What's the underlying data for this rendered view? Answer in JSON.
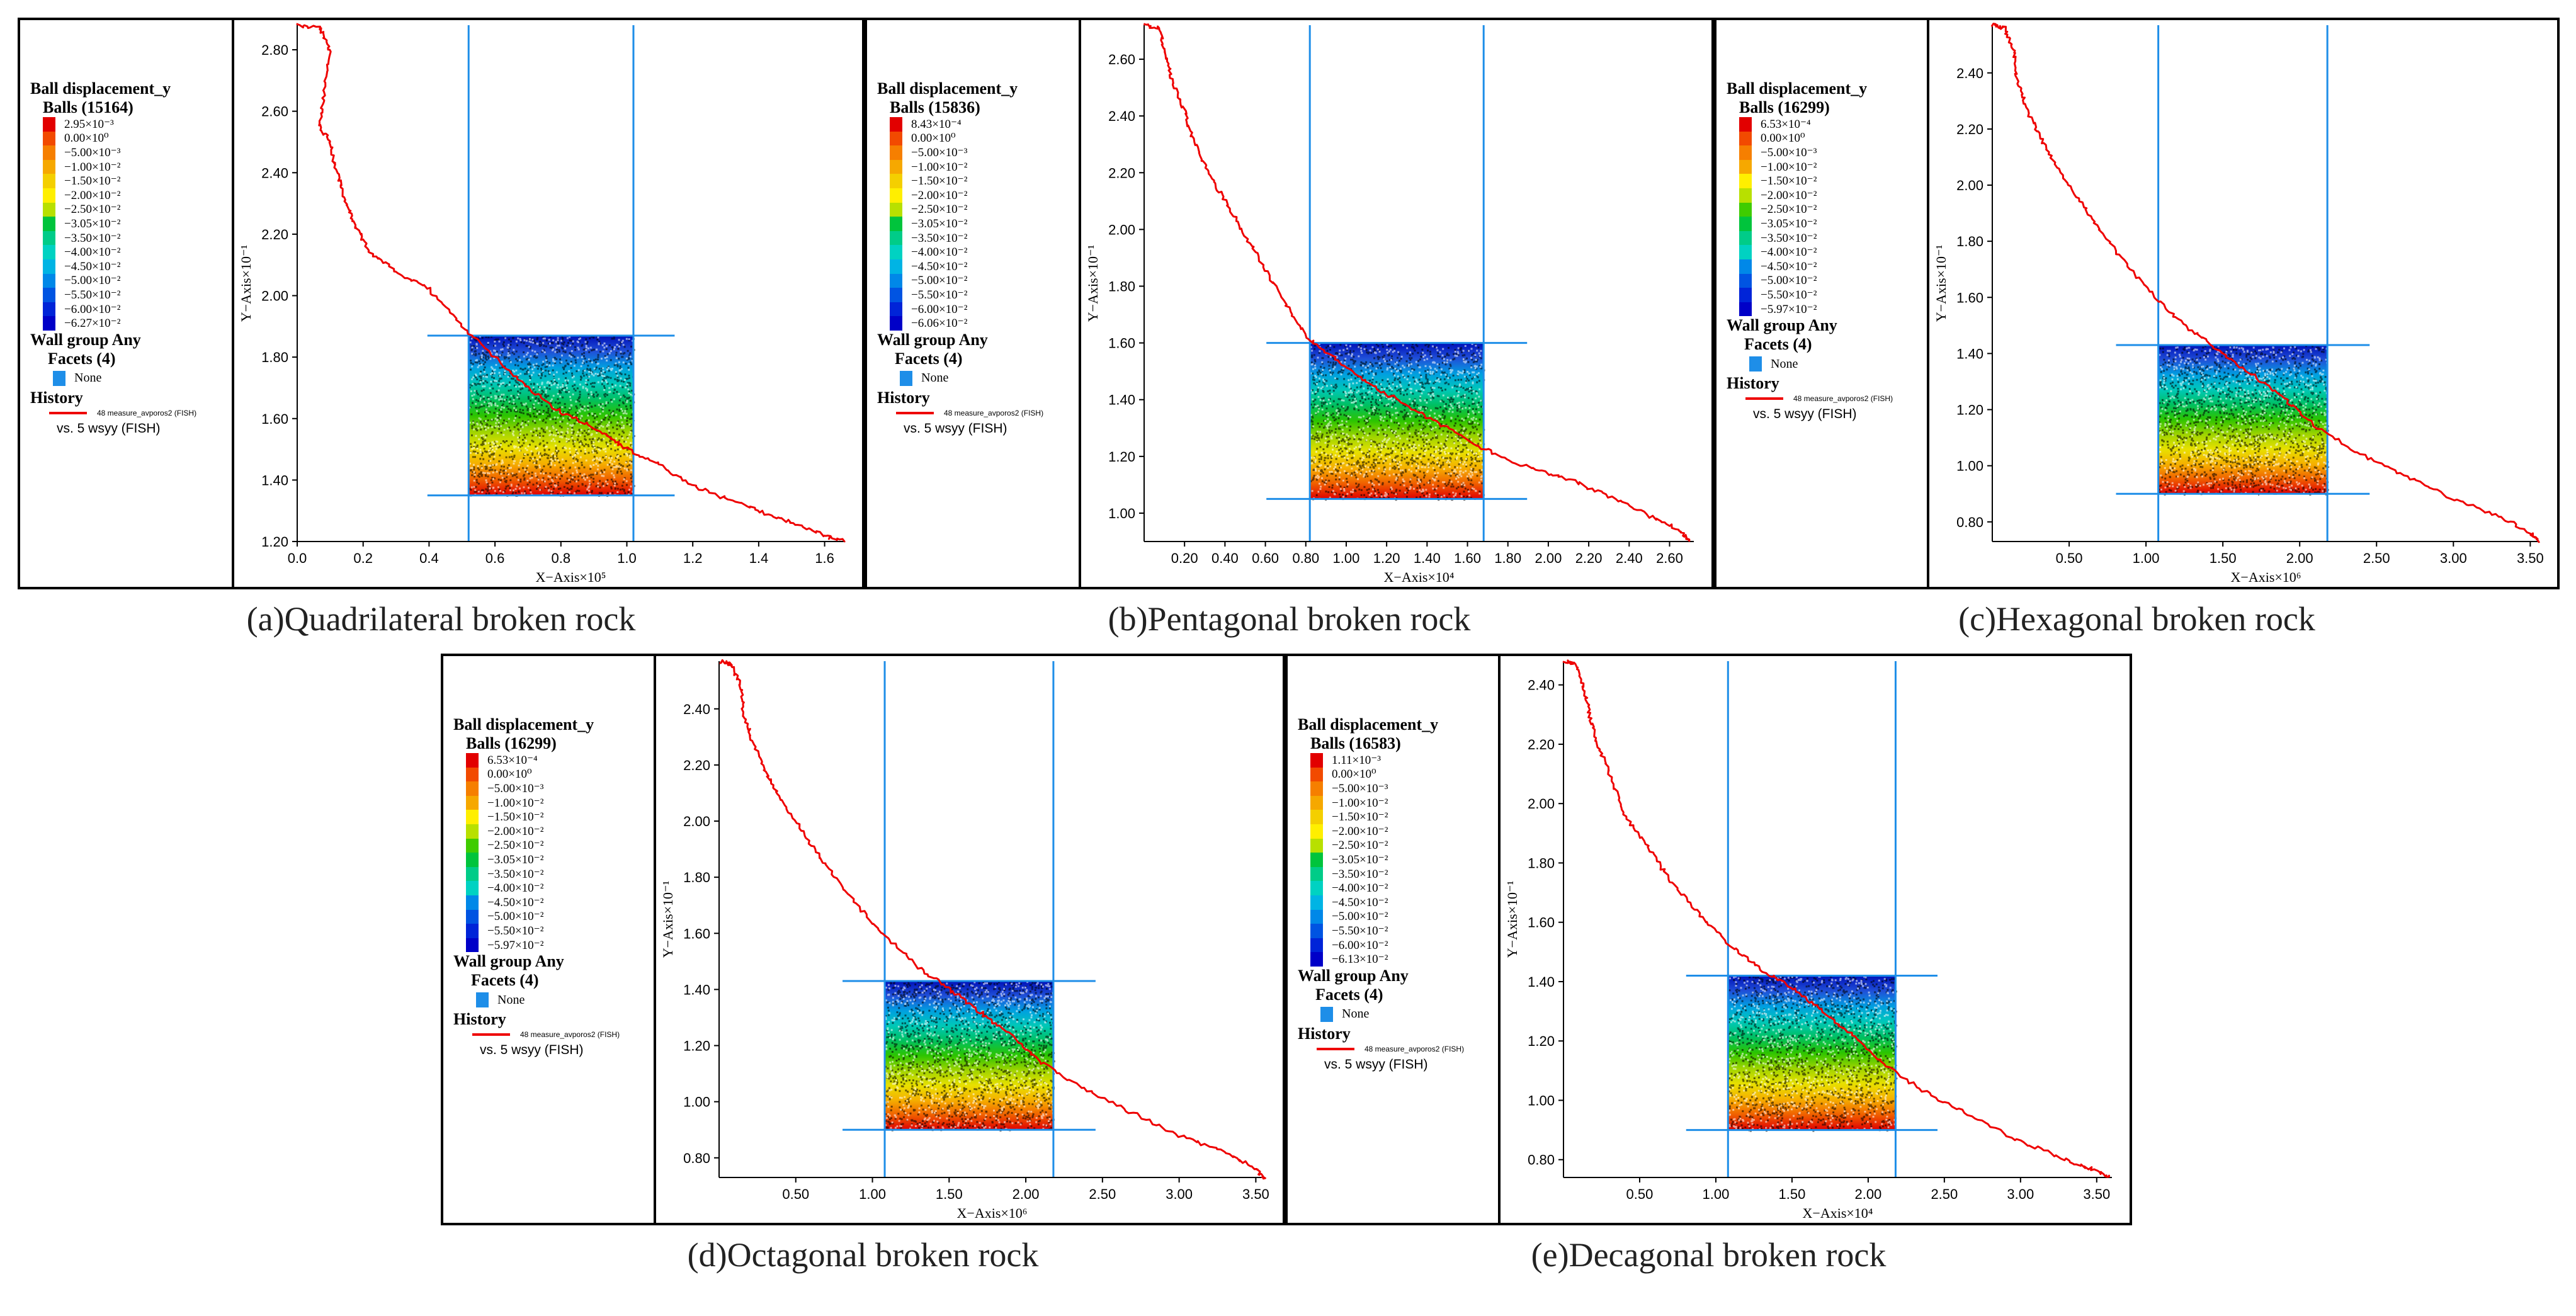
{
  "colors": {
    "history_line": "#ee0000",
    "wall_line": "#1e8ee8",
    "facet_swatch": "#1e8ee8",
    "color_scale": [
      "#e20000",
      "#f24a00",
      "#f67f00",
      "#f6a800",
      "#f4cf00",
      "#ffef00",
      "#b8e000",
      "#3fcc00",
      "#00c43c",
      "#00cc88",
      "#00d2c2",
      "#00b4e4",
      "#0088e8",
      "#0054e2",
      "#0024d8",
      "#0000c8"
    ]
  },
  "panels": [
    {
      "id": "a",
      "caption": "(a)Quadrilateral broken rock",
      "legend": {
        "title": "Ball displacement_y",
        "balls": "Balls (15164)",
        "levels": [
          "2.95×10⁻³",
          "0.00×10⁰",
          "−5.00×10⁻³",
          "−1.00×10⁻²",
          "−1.50×10⁻²",
          "−2.00×10⁻²",
          "−2.50×10⁻²",
          "−3.05×10⁻²",
          "−3.50×10⁻²",
          "−4.00×10⁻²",
          "−4.50×10⁻²",
          "−5.00×10⁻²",
          "−5.50×10⁻²",
          "−6.00×10⁻²",
          "−6.27×10⁻²"
        ],
        "wall_group": "Wall group Any",
        "facets": "Facets (4)",
        "facet_value": "None",
        "history": "History",
        "history_item": "48 measure_avporos2 (FISH)",
        "vs": "vs. 5 wsyy (FISH)"
      },
      "chart_data": {
        "type": "line",
        "xlabel": "X−Axis×10⁵",
        "ylabel": "Y−Axis×10⁻¹",
        "xlim": [
          0,
          1.66
        ],
        "ylim": [
          1.2,
          2.88
        ],
        "xticks": [
          "0.0",
          "0.2",
          "0.4",
          "0.6",
          "0.8",
          "1.0",
          "1.2",
          "1.4",
          "1.6"
        ],
        "xtick_values": [
          0.0,
          0.2,
          0.4,
          0.6,
          0.8,
          1.0,
          1.2,
          1.4,
          1.6
        ],
        "yticks": [
          "1.20",
          "1.40",
          "1.60",
          "1.80",
          "2.00",
          "2.20",
          "2.40",
          "2.60",
          "2.80"
        ],
        "ytick_values": [
          1.2,
          1.4,
          1.6,
          1.8,
          2.0,
          2.2,
          2.4,
          2.6,
          2.8
        ],
        "box": {
          "x": [
            0.52,
            1.02
          ],
          "y": [
            1.35,
            1.87
          ]
        },
        "series": [
          {
            "name": "48 measure_avporos2 (FISH)",
            "x": [
              0.0,
              0.07,
              0.1,
              0.08,
              0.07,
              0.1,
              0.12,
              0.15,
              0.18,
              0.22,
              0.3,
              0.4,
              0.5,
              0.6,
              0.7,
              0.8,
              0.92,
              1.0,
              1.1,
              1.2,
              1.3,
              1.4,
              1.5,
              1.6,
              1.66
            ],
            "y": [
              2.88,
              2.87,
              2.8,
              2.65,
              2.55,
              2.5,
              2.4,
              2.3,
              2.22,
              2.14,
              2.08,
              2.02,
              1.9,
              1.8,
              1.7,
              1.62,
              1.56,
              1.5,
              1.45,
              1.38,
              1.34,
              1.3,
              1.26,
              1.22,
              1.2
            ]
          }
        ]
      }
    },
    {
      "id": "b",
      "caption": "(b)Pentagonal broken rock",
      "legend": {
        "title": "Ball displacement_y",
        "balls": "Balls (15836)",
        "levels": [
          "8.43×10⁻⁴",
          "0.00×10⁰",
          "−5.00×10⁻³",
          "−1.00×10⁻²",
          "−1.50×10⁻²",
          "−2.00×10⁻²",
          "−2.50×10⁻²",
          "−3.05×10⁻²",
          "−3.50×10⁻²",
          "−4.00×10⁻²",
          "−4.50×10⁻²",
          "−5.00×10⁻²",
          "−5.50×10⁻²",
          "−6.00×10⁻²",
          "−6.06×10⁻²"
        ],
        "wall_group": "Wall group Any",
        "facets": "Facets (4)",
        "facet_value": "None",
        "history": "History",
        "history_item": "48 measure_avporos2 (FISH)",
        "vs": "vs. 5 wsyy (FISH)"
      },
      "chart_data": {
        "type": "line",
        "xlabel": "X−Axis×10⁴",
        "ylabel": "Y−Axis×10⁻¹",
        "xlim": [
          0,
          2.72
        ],
        "ylim": [
          0.9,
          2.72
        ],
        "xticks": [
          "0.20",
          "0.40",
          "0.60",
          "0.80",
          "1.00",
          "1.20",
          "1.40",
          "1.60",
          "1.80",
          "2.00",
          "2.20",
          "2.40",
          "2.60"
        ],
        "xtick_values": [
          0.2,
          0.4,
          0.6,
          0.8,
          1.0,
          1.2,
          1.4,
          1.6,
          1.8,
          2.0,
          2.2,
          2.4,
          2.6
        ],
        "yticks": [
          "1.00",
          "1.20",
          "1.40",
          "1.60",
          "1.80",
          "2.00",
          "2.20",
          "2.40",
          "2.60"
        ],
        "ytick_values": [
          1.0,
          1.2,
          1.4,
          1.6,
          1.8,
          2.0,
          2.2,
          2.4,
          2.6
        ],
        "box": {
          "x": [
            0.82,
            1.68
          ],
          "y": [
            1.05,
            1.6
          ]
        },
        "series": [
          {
            "name": "48 measure_avporos2 (FISH)",
            "x": [
              0.0,
              0.08,
              0.1,
              0.14,
              0.2,
              0.25,
              0.32,
              0.4,
              0.5,
              0.6,
              0.7,
              0.8,
              0.95,
              1.1,
              1.3,
              1.5,
              1.7,
              1.9,
              2.1,
              2.3,
              2.5,
              2.65,
              2.7
            ],
            "y": [
              2.72,
              2.71,
              2.62,
              2.52,
              2.42,
              2.3,
              2.2,
              2.1,
              1.98,
              1.86,
              1.74,
              1.62,
              1.54,
              1.46,
              1.38,
              1.3,
              1.22,
              1.16,
              1.12,
              1.06,
              0.99,
              0.94,
              0.9
            ]
          }
        ]
      }
    },
    {
      "id": "c",
      "caption": "(c)Hexagonal broken rock",
      "legend": {
        "title": "Ball displacement_y",
        "balls": "Balls (16299)",
        "levels": [
          "6.53×10⁻⁴",
          "0.00×10⁰",
          "−5.00×10⁻³",
          "−1.00×10⁻²",
          "−1.50×10⁻²",
          "−2.00×10⁻²",
          "−2.50×10⁻²",
          "−3.05×10⁻²",
          "−3.50×10⁻²",
          "−4.00×10⁻²",
          "−4.50×10⁻²",
          "−5.00×10⁻²",
          "−5.50×10⁻²",
          "−5.97×10⁻²"
        ],
        "wall_group": "Wall group Any",
        "facets": "Facets (4)",
        "facet_value": "None",
        "history": "History",
        "history_item": "48 measure_avporos2 (FISH)",
        "vs": "vs. 5 wsyy (FISH)"
      },
      "chart_data": {
        "type": "line",
        "xlabel": "X−Axis×10⁶",
        "ylabel": "Y−Axis×10⁻¹",
        "xlim": [
          0,
          3.56
        ],
        "ylim": [
          0.73,
          2.57
        ],
        "xticks": [
          "0.50",
          "1.00",
          "1.50",
          "2.00",
          "2.50",
          "3.00",
          "3.50"
        ],
        "xtick_values": [
          0.5,
          1.0,
          1.5,
          2.0,
          2.5,
          3.0,
          3.5
        ],
        "yticks": [
          "0.80",
          "1.00",
          "1.20",
          "1.40",
          "1.60",
          "1.80",
          "2.00",
          "2.20",
          "2.40"
        ],
        "ytick_values": [
          0.8,
          1.0,
          1.2,
          1.4,
          1.6,
          1.8,
          2.0,
          2.2,
          2.4
        ],
        "box": {
          "x": [
            1.08,
            2.18
          ],
          "y": [
            0.9,
            1.43
          ]
        },
        "series": [
          {
            "name": "48 measure_avporos2 (FISH)",
            "x": [
              0.0,
              0.08,
              0.14,
              0.16,
              0.22,
              0.3,
              0.4,
              0.55,
              0.7,
              0.9,
              1.1,
              1.3,
              1.5,
              1.7,
              1.9,
              2.1,
              2.4,
              2.7,
              3.0,
              3.3,
              3.5,
              3.56
            ],
            "y": [
              2.57,
              2.56,
              2.48,
              2.38,
              2.28,
              2.18,
              2.08,
              1.96,
              1.84,
              1.7,
              1.58,
              1.48,
              1.4,
              1.32,
              1.24,
              1.14,
              1.04,
              0.96,
              0.88,
              0.82,
              0.76,
              0.73
            ]
          }
        ]
      }
    },
    {
      "id": "d",
      "caption": "(d)Octagonal broken rock",
      "legend": {
        "title": "Ball displacement_y",
        "balls": "Balls (16299)",
        "levels": [
          "6.53×10⁻⁴",
          "0.00×10⁰",
          "−5.00×10⁻³",
          "−1.00×10⁻²",
          "−1.50×10⁻²",
          "−2.00×10⁻²",
          "−2.50×10⁻²",
          "−3.05×10⁻²",
          "−3.50×10⁻²",
          "−4.00×10⁻²",
          "−4.50×10⁻²",
          "−5.00×10⁻²",
          "−5.50×10⁻²",
          "−5.97×10⁻²"
        ],
        "wall_group": "Wall group Any",
        "facets": "Facets (4)",
        "facet_value": "None",
        "history": "History",
        "history_item": "48 measure_avporos2 (FISH)",
        "vs": "vs. 5 wsyy (FISH)"
      },
      "chart_data": {
        "type": "line",
        "xlabel": "X−Axis×10⁶",
        "ylabel": "Y−Axis×10⁻¹",
        "xlim": [
          0,
          3.56
        ],
        "ylim": [
          0.73,
          2.57
        ],
        "xticks": [
          "0.50",
          "1.00",
          "1.50",
          "2.00",
          "2.50",
          "3.00",
          "3.50"
        ],
        "xtick_values": [
          0.5,
          1.0,
          1.5,
          2.0,
          2.5,
          3.0,
          3.5
        ],
        "yticks": [
          "0.80",
          "1.00",
          "1.20",
          "1.40",
          "1.60",
          "1.80",
          "2.00",
          "2.20",
          "2.40"
        ],
        "ytick_values": [
          0.8,
          1.0,
          1.2,
          1.4,
          1.6,
          1.8,
          2.0,
          2.2,
          2.4
        ],
        "box": {
          "x": [
            1.08,
            2.18
          ],
          "y": [
            0.9,
            1.43
          ]
        },
        "series": [
          {
            "name": "48 measure_avporos2 (FISH)",
            "x": [
              0.0,
              0.08,
              0.14,
              0.16,
              0.22,
              0.3,
              0.4,
              0.55,
              0.7,
              0.9,
              1.1,
              1.3,
              1.5,
              1.7,
              1.9,
              2.1,
              2.4,
              2.7,
              3.0,
              3.3,
              3.5,
              3.56
            ],
            "y": [
              2.57,
              2.56,
              2.48,
              2.38,
              2.28,
              2.18,
              2.08,
              1.96,
              1.84,
              1.7,
              1.58,
              1.48,
              1.4,
              1.32,
              1.24,
              1.14,
              1.04,
              0.96,
              0.88,
              0.82,
              0.76,
              0.73
            ]
          }
        ]
      }
    },
    {
      "id": "e",
      "caption": "(e)Decagonal broken rock",
      "legend": {
        "title": "Ball displacement_y",
        "balls": "Balls (16583)",
        "levels": [
          "1.11×10⁻³",
          "0.00×10⁰",
          "−5.00×10⁻³",
          "−1.00×10⁻²",
          "−1.50×10⁻²",
          "−2.00×10⁻²",
          "−2.50×10⁻²",
          "−3.05×10⁻²",
          "−3.50×10⁻²",
          "−4.00×10⁻²",
          "−4.50×10⁻²",
          "−5.00×10⁻²",
          "−5.50×10⁻²",
          "−6.00×10⁻²",
          "−6.13×10⁻²"
        ],
        "wall_group": "Wall group Any",
        "facets": "Facets (4)",
        "facet_value": "None",
        "history": "History",
        "history_item": "48 measure_avporos2 (FISH)",
        "vs": "vs. 5 wsyy (FISH)"
      },
      "chart_data": {
        "type": "line",
        "xlabel": "X−Axis×10⁴",
        "ylabel": "Y−Axis×10⁻¹",
        "xlim": [
          0,
          3.6
        ],
        "ylim": [
          0.74,
          2.48
        ],
        "xticks": [
          "0.50",
          "1.00",
          "1.50",
          "2.00",
          "2.50",
          "3.00",
          "3.50"
        ],
        "xtick_values": [
          0.5,
          1.0,
          1.5,
          2.0,
          2.5,
          3.0,
          3.5
        ],
        "yticks": [
          "0.80",
          "1.00",
          "1.20",
          "1.40",
          "1.60",
          "1.80",
          "2.00",
          "2.20",
          "2.40"
        ],
        "ytick_values": [
          0.8,
          1.0,
          1.2,
          1.4,
          1.6,
          1.8,
          2.0,
          2.2,
          2.4
        ],
        "box": {
          "x": [
            1.08,
            2.18
          ],
          "y": [
            0.9,
            1.42
          ]
        },
        "series": [
          {
            "name": "48 measure_avporos2 (FISH)",
            "x": [
              0.0,
              0.08,
              0.14,
              0.18,
              0.24,
              0.32,
              0.4,
              0.55,
              0.7,
              0.9,
              1.1,
              1.3,
              1.5,
              1.7,
              1.9,
              2.1,
              2.4,
              2.7,
              3.0,
              3.3,
              3.5,
              3.58
            ],
            "y": [
              2.48,
              2.47,
              2.38,
              2.28,
              2.18,
              2.08,
              1.96,
              1.86,
              1.74,
              1.62,
              1.52,
              1.44,
              1.38,
              1.3,
              1.22,
              1.12,
              1.02,
              0.94,
              0.86,
              0.8,
              0.76,
              0.74
            ]
          }
        ]
      }
    }
  ]
}
